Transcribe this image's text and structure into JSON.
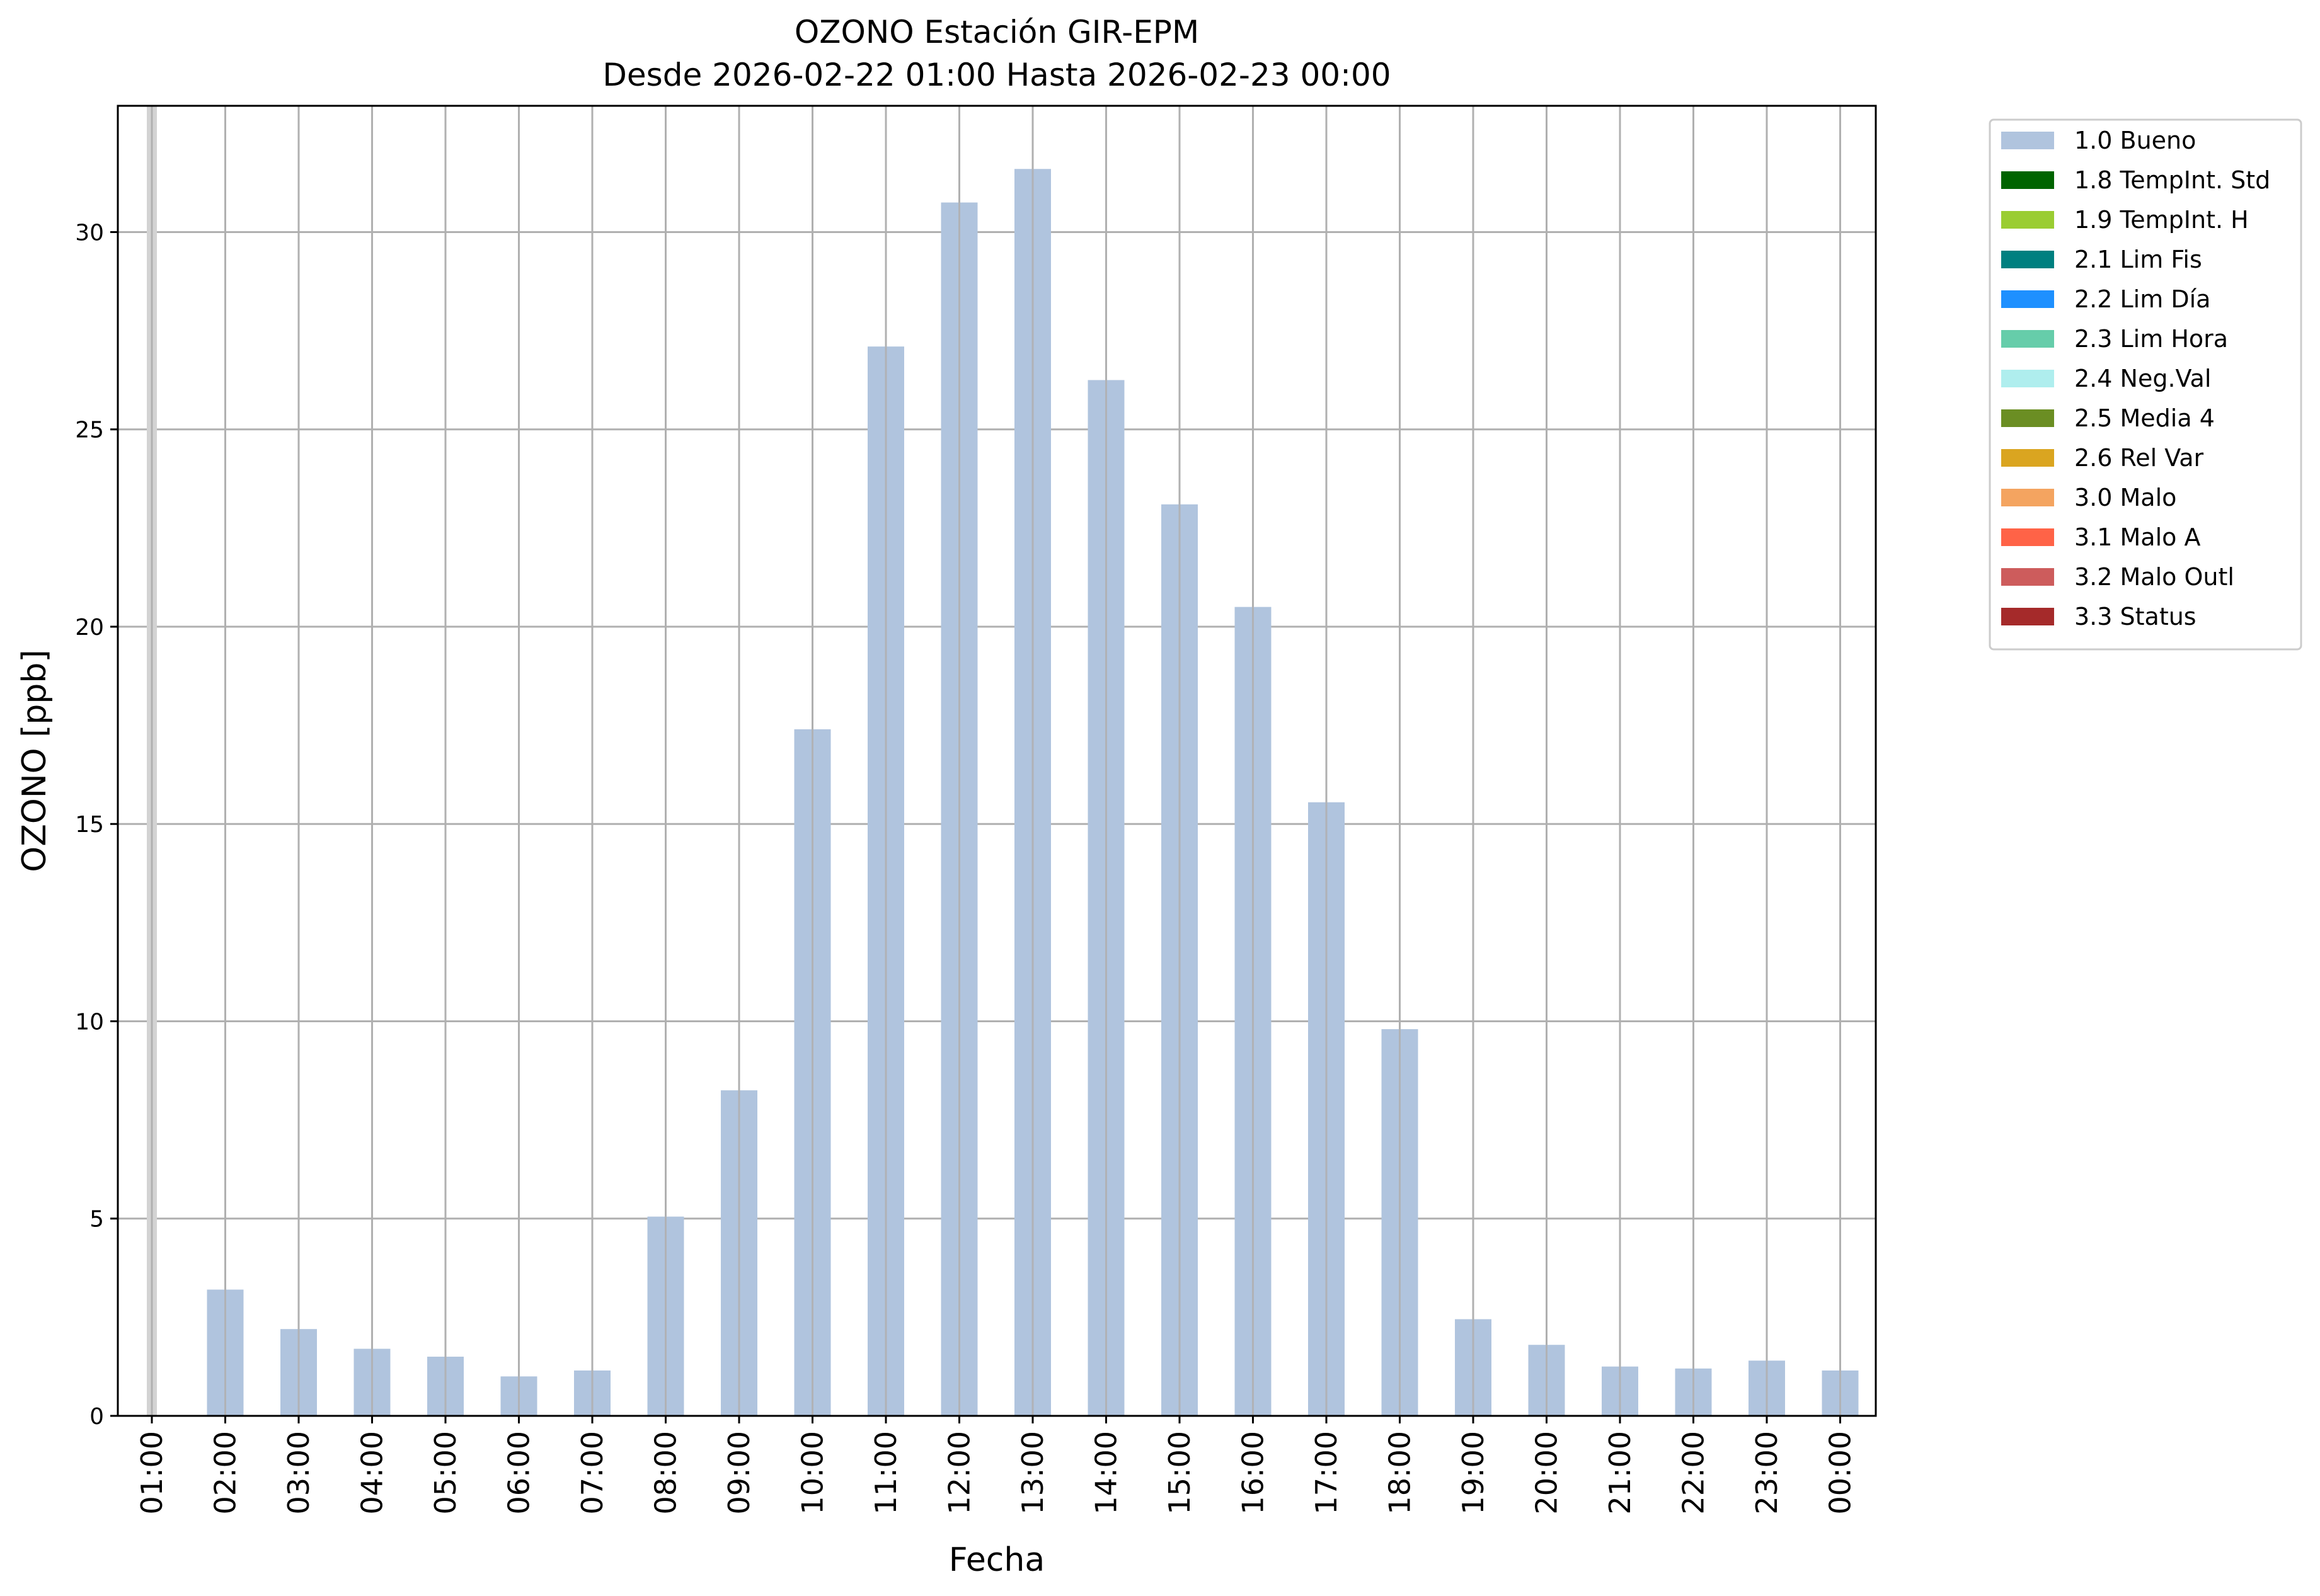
{
  "chart_data": {
    "type": "bar",
    "title": "OZONO Estación GIR-EPM",
    "subtitle": "Desde 2026-02-22 01:00 Hasta 2026-02-23 00:00",
    "xlabel": "Fecha",
    "ylabel": "OZONO [ppb]",
    "categories": [
      "01:00",
      "02:00",
      "03:00",
      "04:00",
      "05:00",
      "06:00",
      "07:00",
      "08:00",
      "09:00",
      "10:00",
      "11:00",
      "12:00",
      "13:00",
      "14:00",
      "15:00",
      "16:00",
      "17:00",
      "18:00",
      "19:00",
      "20:00",
      "21:00",
      "22:00",
      "23:00",
      "00:00"
    ],
    "series": [
      {
        "name": "1.0 Bueno",
        "values": [
          null,
          3.2,
          2.2,
          1.7,
          1.5,
          1.0,
          1.15,
          5.05,
          8.25,
          17.4,
          27.1,
          30.75,
          31.6,
          26.25,
          23.1,
          20.5,
          15.55,
          9.8,
          2.45,
          1.8,
          1.25,
          1.2,
          1.4,
          1.15
        ]
      }
    ],
    "ylim": [
      0,
      33.2
    ],
    "yticks": [
      0,
      5,
      10,
      15,
      20,
      25,
      30
    ],
    "grid": true,
    "legend_placement": "outside-top-right",
    "legend": [
      {
        "label": "1.0 Bueno",
        "color": "#b0c4de"
      },
      {
        "label": "1.8 TempInt. Std",
        "color": "#006400"
      },
      {
        "label": "1.9 TempInt. H",
        "color": "#9acd32"
      },
      {
        "label": "2.1 Lim Fis",
        "color": "#008080"
      },
      {
        "label": "2.2 Lim Día",
        "color": "#1e90ff"
      },
      {
        "label": "2.3 Lim Hora",
        "color": "#66cdaa"
      },
      {
        "label": "2.4 Neg.Val",
        "color": "#afeeee"
      },
      {
        "label": "2.5 Media 4",
        "color": "#6b8e23"
      },
      {
        "label": "2.6 Rel Var",
        "color": "#daa520"
      },
      {
        "label": "3.0 Malo",
        "color": "#f4a460"
      },
      {
        "label": "3.1 Malo A",
        "color": "#ff6347"
      },
      {
        "label": "3.2 Malo Outl",
        "color": "#cd5c5c"
      },
      {
        "label": "3.3 Status",
        "color": "#a52a2a"
      }
    ],
    "colors": {
      "bar": "#b0c4de",
      "grid": "#b0b0b0",
      "missing_marker": "#d3d3d3"
    }
  }
}
